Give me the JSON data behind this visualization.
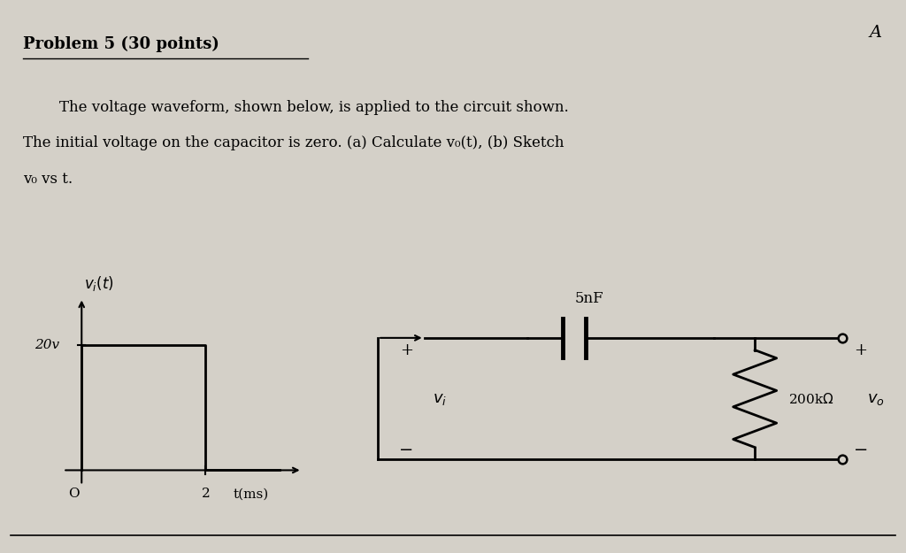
{
  "background_color": "#d4d0c8",
  "title": "Problem 5 (30 points)",
  "problem_text_line1": "    The voltage waveform, shown below, is applied to the circuit shown.",
  "problem_text_line2": "The initial voltage on the capacitor is zero. (a) Calculate v₀(t), (b) Sketch",
  "problem_text_line3": "v₀ vs t.",
  "corner_letter": "A",
  "capacitor_label": "5nF",
  "resistor_label": "200kΩ",
  "v_in_label": "v_i",
  "v_out_label": "v_o",
  "plus_sign": "+",
  "minus_sign": "−",
  "label_20v": "20v",
  "label_2": "2",
  "label_t": "t(ms)",
  "label_O": "O"
}
